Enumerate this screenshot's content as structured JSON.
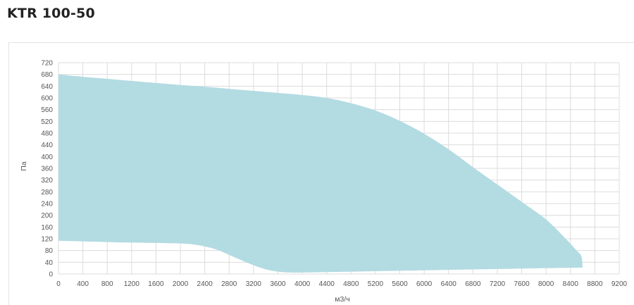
{
  "header": {
    "title": "KTR 100-50"
  },
  "chart_data": {
    "type": "area",
    "title": "KTR 100-50",
    "xlabel": "м3/ч",
    "ylabel": "Па",
    "xlim": [
      0,
      9200
    ],
    "ylim": [
      0,
      720
    ],
    "xticks": [
      0,
      400,
      800,
      1200,
      1600,
      2000,
      2400,
      2800,
      3200,
      3600,
      4000,
      4400,
      4800,
      5200,
      5600,
      6000,
      6400,
      6800,
      7200,
      7600,
      8000,
      8400,
      8800,
      9200
    ],
    "yticks": [
      0,
      40,
      80,
      120,
      160,
      200,
      240,
      280,
      320,
      360,
      400,
      440,
      480,
      520,
      560,
      600,
      640,
      680,
      720
    ],
    "grid": true,
    "fill_color": "#b3dbe2",
    "series": [
      {
        "upper": [
          [
            0,
            680
          ],
          [
            400,
            672
          ],
          [
            800,
            665
          ],
          [
            1200,
            658
          ],
          [
            1600,
            651
          ],
          [
            2000,
            644
          ],
          [
            2400,
            638
          ],
          [
            2800,
            631
          ],
          [
            3200,
            624
          ],
          [
            3600,
            617
          ],
          [
            4000,
            610
          ],
          [
            4400,
            600
          ],
          [
            4800,
            582
          ],
          [
            5200,
            557
          ],
          [
            5600,
            522
          ],
          [
            6000,
            478
          ],
          [
            6400,
            425
          ],
          [
            6800,
            364
          ],
          [
            7200,
            305
          ],
          [
            7600,
            246
          ],
          [
            8000,
            186
          ],
          [
            8300,
            125
          ],
          [
            8500,
            80
          ],
          [
            8580,
            60
          ],
          [
            8600,
            22
          ]
        ],
        "lower": [
          [
            0,
            113
          ],
          [
            400,
            111
          ],
          [
            800,
            109
          ],
          [
            1200,
            107
          ],
          [
            1600,
            106
          ],
          [
            2000,
            104
          ],
          [
            2200,
            101
          ],
          [
            2400,
            94
          ],
          [
            2600,
            83
          ],
          [
            2800,
            65
          ],
          [
            3000,
            47
          ],
          [
            3200,
            30
          ],
          [
            3400,
            16
          ],
          [
            3600,
            8
          ],
          [
            3800,
            5
          ],
          [
            4000,
            5
          ],
          [
            4800,
            8
          ],
          [
            5600,
            11
          ],
          [
            6400,
            14
          ],
          [
            7200,
            17
          ],
          [
            8000,
            20
          ],
          [
            8600,
            22
          ]
        ]
      }
    ]
  }
}
